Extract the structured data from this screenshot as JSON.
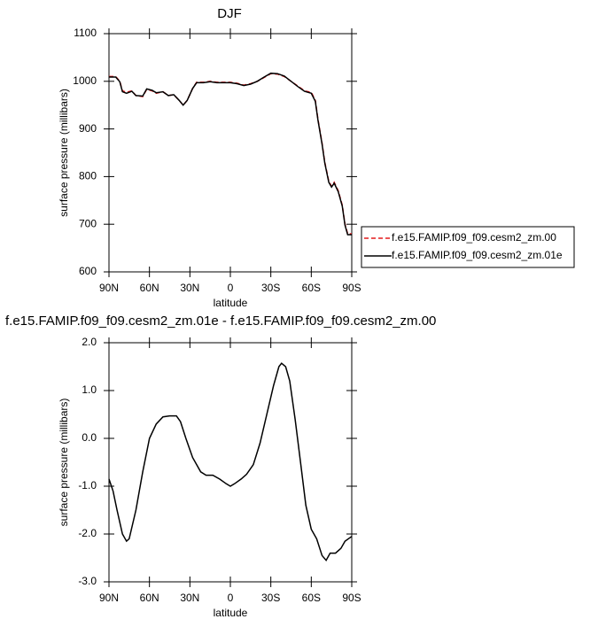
{
  "chart_data": [
    {
      "type": "line",
      "title": "DJF",
      "xlabel": "latitude",
      "ylabel": "surface pressure (millibars)",
      "x": [
        90,
        85,
        82,
        80,
        77,
        73,
        70,
        65,
        62,
        58,
        55,
        50,
        46,
        42,
        38,
        35,
        32,
        28,
        25,
        20,
        15,
        10,
        5,
        0,
        -5,
        -10,
        -15,
        -20,
        -25,
        -30,
        -35,
        -40,
        -45,
        -50,
        -55,
        -60,
        -63,
        -65,
        -68,
        -70,
        -73,
        -75,
        -77,
        -80,
        -83,
        -85,
        -87,
        -90
      ],
      "series": [
        {
          "name": "f.e15.FAMIP.f09_f09.cesm2_zm.00",
          "color": "#e41a1c",
          "dash": true,
          "values": [
            1010,
            1010,
            1000,
            980,
            977,
            980,
            970,
            968,
            983,
            980,
            975,
            978,
            970,
            972,
            960,
            950,
            960,
            985,
            998,
            998,
            1000,
            998,
            998,
            998,
            996,
            992,
            995,
            1000,
            1008,
            1016,
            1015,
            1010,
            1000,
            990,
            980,
            977,
            960,
            920,
            870,
            830,
            790,
            780,
            788,
            770,
            740,
            700,
            680,
            680
          ]
        },
        {
          "name": "f.e15.FAMIP.f09_f09.cesm2_zm.01e",
          "color": "#000000",
          "dash": false,
          "values": [
            1009,
            1009,
            999,
            978,
            975,
            979,
            970,
            969,
            984,
            981,
            976,
            978,
            970,
            972,
            960,
            950,
            960,
            985,
            997,
            997,
            999,
            997,
            997,
            997,
            995,
            991,
            994,
            1000,
            1009,
            1017,
            1016,
            1011,
            1000,
            989,
            979,
            975,
            958,
            918,
            868,
            828,
            788,
            778,
            786,
            768,
            738,
            698,
            678,
            678
          ]
        }
      ],
      "xlim": [
        90,
        -90
      ],
      "xticks": [
        {
          "value": 90,
          "label": "90N"
        },
        {
          "value": 60,
          "label": "60N"
        },
        {
          "value": 30,
          "label": "30N"
        },
        0,
        {
          "value": -30,
          "label": "30S"
        },
        {
          "value": -60,
          "label": "60S"
        },
        {
          "value": -90,
          "label": "90S"
        }
      ],
      "ylim": [
        600,
        1100
      ],
      "yticks": [
        600,
        700,
        800,
        900,
        1000,
        1100
      ]
    },
    {
      "type": "line",
      "title": "f.e15.FAMIP.f09_f09.cesm2_zm.01e - f.e15.FAMIP.f09_f09.cesm2_zm.00",
      "xlabel": "latitude",
      "ylabel": "surface pressure (millibars)",
      "x": [
        90,
        87,
        84,
        80,
        77,
        75,
        70,
        65,
        60,
        55,
        50,
        45,
        40,
        37,
        33,
        28,
        22,
        18,
        13,
        8,
        3,
        0,
        -3,
        -8,
        -12,
        -17,
        -22,
        -27,
        -32,
        -36,
        -38,
        -41,
        -44,
        -48,
        -52,
        -56,
        -60,
        -64,
        -68,
        -71,
        -74,
        -78,
        -82,
        -85,
        -90
      ],
      "series": [
        {
          "color": "#000000",
          "dash": false,
          "values": [
            -0.85,
            -1.1,
            -1.5,
            -2.0,
            -2.15,
            -2.1,
            -1.5,
            -0.7,
            0.0,
            0.3,
            0.45,
            0.47,
            0.47,
            0.35,
            0.0,
            -0.4,
            -0.7,
            -0.77,
            -0.77,
            -0.85,
            -0.95,
            -1.0,
            -0.95,
            -0.85,
            -0.75,
            -0.55,
            -0.1,
            0.5,
            1.1,
            1.5,
            1.57,
            1.5,
            1.2,
            0.4,
            -0.5,
            -1.4,
            -1.9,
            -2.1,
            -2.45,
            -2.55,
            -2.4,
            -2.4,
            -2.3,
            -2.15,
            -2.05
          ]
        }
      ],
      "xlim": [
        90,
        -90
      ],
      "xticks": [
        {
          "value": 90,
          "label": "90N"
        },
        {
          "value": 60,
          "label": "60N"
        },
        {
          "value": 30,
          "label": "30N"
        },
        0,
        {
          "value": -30,
          "label": "30S"
        },
        {
          "value": -60,
          "label": "60S"
        },
        {
          "value": -90,
          "label": "90S"
        }
      ],
      "ylim": [
        -3,
        2
      ],
      "yticks": [
        {
          "value": -3,
          "label": "-3.0"
        },
        {
          "value": -2,
          "label": "-2.0"
        },
        {
          "value": -1,
          "label": "-1.0"
        },
        {
          "value": 0,
          "label": "0.0"
        },
        {
          "value": 1,
          "label": "1.0"
        },
        {
          "value": 2,
          "label": "2.0"
        }
      ]
    }
  ]
}
